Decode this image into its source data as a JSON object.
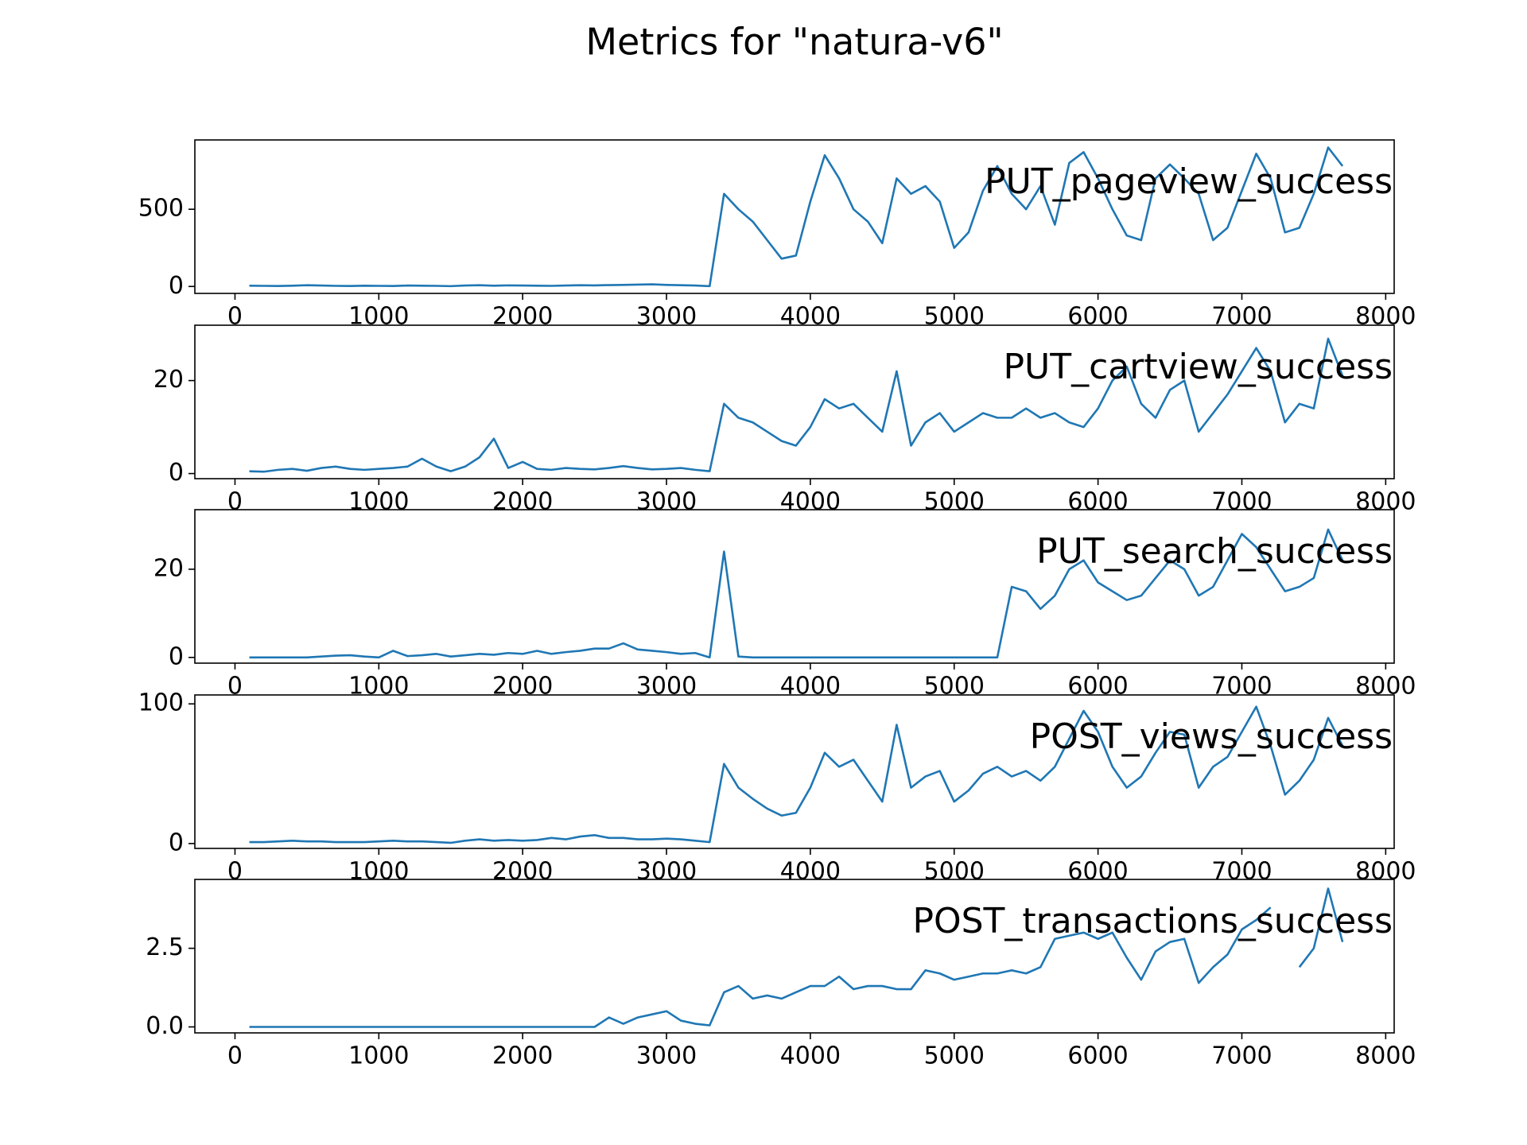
{
  "title": "Metrics for \"natura-v6\"",
  "chart_data": [
    {
      "type": "line",
      "title": "PUT_pageview_success",
      "color": "#1f77b4",
      "x": [
        100,
        200,
        300,
        400,
        500,
        600,
        700,
        800,
        900,
        1000,
        1100,
        1200,
        1300,
        1400,
        1500,
        1600,
        1700,
        1800,
        1900,
        2000,
        2100,
        2200,
        2300,
        2400,
        2500,
        2600,
        2700,
        2800,
        2900,
        3000,
        3100,
        3200,
        3300,
        3400,
        3500,
        3600,
        3700,
        3800,
        3900,
        4000,
        4100,
        4200,
        4300,
        4400,
        4500,
        4600,
        4700,
        4800,
        4900,
        5000,
        5100,
        5200,
        5300,
        5400,
        5500,
        5600,
        5700,
        5800,
        5900,
        6000,
        6100,
        6200,
        6300,
        6400,
        6500,
        6600,
        6700,
        6800,
        6900,
        7000,
        7100,
        7200,
        7300,
        7400,
        7500,
        7600,
        7700
      ],
      "values": [
        5,
        4,
        3,
        5,
        8,
        6,
        4,
        3,
        5,
        4,
        3,
        6,
        5,
        4,
        2,
        6,
        8,
        5,
        7,
        6,
        5,
        4,
        6,
        8,
        7,
        9,
        10,
        12,
        14,
        10,
        8,
        6,
        2,
        600,
        500,
        420,
        300,
        180,
        200,
        550,
        850,
        700,
        500,
        420,
        280,
        700,
        600,
        650,
        550,
        250,
        350,
        620,
        780,
        600,
        500,
        650,
        400,
        800,
        870,
        700,
        500,
        330,
        300,
        700,
        790,
        700,
        600,
        300,
        380,
        620,
        860,
        700,
        350,
        380,
        600,
        900,
        780
      ],
      "xlim": [
        -279,
        8059
      ],
      "ylim": [
        -45,
        949
      ],
      "xticks": [
        0,
        1000,
        2000,
        3000,
        4000,
        5000,
        6000,
        7000,
        8000
      ],
      "yticks": [
        0,
        500
      ]
    },
    {
      "type": "line",
      "title": "PUT_cartview_success",
      "color": "#1f77b4",
      "x": [
        100,
        200,
        300,
        400,
        500,
        600,
        700,
        800,
        900,
        1000,
        1100,
        1200,
        1300,
        1400,
        1500,
        1600,
        1700,
        1800,
        1900,
        2000,
        2100,
        2200,
        2300,
        2400,
        2500,
        2600,
        2700,
        2800,
        2900,
        3000,
        3100,
        3200,
        3300,
        3400,
        3500,
        3600,
        3700,
        3800,
        3900,
        4000,
        4100,
        4200,
        4300,
        4400,
        4500,
        4600,
        4700,
        4800,
        4900,
        5000,
        5100,
        5200,
        5300,
        5400,
        5500,
        5600,
        5700,
        5800,
        5900,
        6000,
        6100,
        6200,
        6300,
        6400,
        6500,
        6600,
        6700,
        6800,
        6900,
        7000,
        7100,
        7200,
        7300,
        7400,
        7500,
        7600,
        7700
      ],
      "values": [
        0.5,
        0.4,
        0.8,
        1,
        0.6,
        1.2,
        1.5,
        1,
        0.8,
        1,
        1.2,
        1.5,
        3.2,
        1.5,
        0.5,
        1.5,
        3.5,
        7.5,
        1.2,
        2.5,
        1,
        0.8,
        1.2,
        1,
        0.9,
        1.2,
        1.6,
        1.2,
        0.9,
        1,
        1.2,
        0.8,
        0.5,
        15,
        12,
        11,
        9,
        7,
        6,
        10,
        16,
        14,
        15,
        12,
        9,
        22,
        6,
        11,
        13,
        9,
        11,
        13,
        12,
        12,
        14,
        12,
        13,
        11,
        10,
        14,
        20,
        23,
        15,
        12,
        18,
        20,
        9,
        13,
        17,
        22,
        27,
        22,
        11,
        15,
        14,
        29,
        21
      ],
      "xlim": [
        -279,
        8059
      ],
      "ylim": [
        -1.1,
        31.9
      ],
      "xticks": [
        0,
        1000,
        2000,
        3000,
        4000,
        5000,
        6000,
        7000,
        8000
      ],
      "yticks": [
        0,
        20
      ]
    },
    {
      "type": "line",
      "title": "PUT_search_success",
      "color": "#1f77b4",
      "x": [
        100,
        200,
        300,
        400,
        500,
        600,
        700,
        800,
        900,
        1000,
        1100,
        1200,
        1300,
        1400,
        1500,
        1600,
        1700,
        1800,
        1900,
        2000,
        2100,
        2200,
        2300,
        2400,
        2500,
        2600,
        2700,
        2800,
        2900,
        3000,
        3100,
        3200,
        3300,
        3400,
        3500,
        3600,
        3700,
        3800,
        3900,
        4000,
        4100,
        4200,
        4300,
        4400,
        4500,
        4600,
        4700,
        4800,
        4900,
        5000,
        5100,
        5200,
        5300,
        5400,
        5500,
        5600,
        5700,
        5800,
        5900,
        6000,
        6100,
        6200,
        6300,
        6400,
        6500,
        6600,
        6700,
        6800,
        6900,
        7000,
        7100,
        7200,
        7300,
        7400,
        7500,
        7600,
        7700
      ],
      "values": [
        0,
        0,
        0,
        0,
        0,
        0.2,
        0.4,
        0.5,
        0.2,
        0,
        1.5,
        0.3,
        0.5,
        0.8,
        0.2,
        0.5,
        0.8,
        0.6,
        1,
        0.8,
        1.5,
        0.8,
        1.2,
        1.5,
        2,
        2,
        3.2,
        1.8,
        1.5,
        1.2,
        0.8,
        1,
        0,
        24,
        0.2,
        0,
        0,
        0,
        0,
        0,
        0,
        0,
        0,
        0,
        0,
        0,
        0,
        0,
        0,
        0,
        0,
        0,
        0,
        16,
        15,
        11,
        14,
        20,
        22,
        17,
        15,
        13,
        14,
        18,
        22,
        20,
        14,
        16,
        22,
        28,
        25,
        20,
        15,
        16,
        18,
        29,
        22
      ],
      "xlim": [
        -279,
        8059
      ],
      "ylim": [
        -1.3,
        33.5
      ],
      "xticks": [
        0,
        1000,
        2000,
        3000,
        4000,
        5000,
        6000,
        7000,
        8000
      ],
      "yticks": [
        0,
        20
      ]
    },
    {
      "type": "line",
      "title": "POST_views_success",
      "color": "#1f77b4",
      "x": [
        100,
        200,
        300,
        400,
        500,
        600,
        700,
        800,
        900,
        1000,
        1100,
        1200,
        1300,
        1400,
        1500,
        1600,
        1700,
        1800,
        1900,
        2000,
        2100,
        2200,
        2300,
        2400,
        2500,
        2600,
        2700,
        2800,
        2900,
        3000,
        3100,
        3200,
        3300,
        3400,
        3500,
        3600,
        3700,
        3800,
        3900,
        4000,
        4100,
        4200,
        4300,
        4400,
        4500,
        4600,
        4700,
        4800,
        4900,
        5000,
        5100,
        5200,
        5300,
        5400,
        5500,
        5600,
        5700,
        5800,
        5900,
        6000,
        6100,
        6200,
        6300,
        6400,
        6500,
        6600,
        6700,
        6800,
        6900,
        7000,
        7100,
        7200,
        7300,
        7400,
        7500,
        7600,
        7700
      ],
      "values": [
        1,
        1,
        1.5,
        2,
        1.5,
        1.5,
        1,
        1,
        1,
        1.5,
        2,
        1.5,
        1.5,
        1,
        0.5,
        2,
        3,
        2,
        2.5,
        2,
        2.5,
        4,
        3,
        5,
        6,
        4,
        4,
        3,
        3,
        3.5,
        3,
        2,
        1,
        57,
        40,
        32,
        25,
        20,
        22,
        40,
        65,
        55,
        60,
        45,
        30,
        85,
        40,
        48,
        52,
        30,
        38,
        50,
        55,
        48,
        52,
        45,
        55,
        75,
        95,
        80,
        55,
        40,
        48,
        65,
        80,
        78,
        40,
        55,
        62,
        80,
        98,
        70,
        35,
        45,
        60,
        90,
        70
      ],
      "xlim": [
        -279,
        8059
      ],
      "ylim": [
        -3.5,
        106.4
      ],
      "xticks": [
        0,
        1000,
        2000,
        3000,
        4000,
        5000,
        6000,
        7000,
        8000
      ],
      "yticks": [
        0,
        100
      ]
    },
    {
      "type": "line",
      "title": "POST_transactions_success",
      "color": "#1f77b4",
      "x": [
        100,
        200,
        300,
        400,
        500,
        600,
        700,
        800,
        900,
        1000,
        1100,
        1200,
        1300,
        1400,
        1500,
        1600,
        1700,
        1800,
        1900,
        2000,
        2100,
        2200,
        2300,
        2400,
        2500,
        2600,
        2700,
        2800,
        2900,
        3000,
        3100,
        3200,
        3300,
        3400,
        3500,
        3600,
        3700,
        3800,
        3900,
        4000,
        4100,
        4200,
        4300,
        4400,
        4500,
        4600,
        4700,
        4800,
        4900,
        5000,
        5100,
        5200,
        5300,
        5400,
        5500,
        5600,
        5700,
        5800,
        5900,
        6000,
        6100,
        6200,
        6300,
        6400,
        6500,
        6600,
        6700,
        6800,
        6900,
        7000,
        7100,
        7200,
        7300,
        7400,
        7500,
        7600,
        7700
      ],
      "values": [
        0,
        0,
        0,
        0,
        0,
        0,
        0,
        0,
        0,
        0,
        0,
        0,
        0,
        0,
        0,
        0,
        0,
        0,
        0,
        0,
        0,
        0,
        0,
        0,
        0,
        0.3,
        0.1,
        0.3,
        0.4,
        0.5,
        0.2,
        0.1,
        0.05,
        1.1,
        1.3,
        0.9,
        1,
        0.9,
        1.1,
        1.3,
        1.3,
        1.6,
        1.2,
        1.3,
        1.3,
        1.2,
        1.2,
        1.8,
        1.7,
        1.5,
        1.6,
        1.7,
        1.7,
        1.8,
        1.7,
        1.9,
        2.8,
        2.9,
        3,
        2.8,
        3,
        2.2,
        1.5,
        2.4,
        2.7,
        2.8,
        1.4,
        1.9,
        2.3,
        3.1,
        3.4,
        3.8,
        null,
        1.9,
        2.5,
        4.4,
        2.7
      ],
      "xlim": [
        -279,
        8059
      ],
      "ylim": [
        -0.19,
        4.69
      ],
      "xticks": [
        0,
        1000,
        2000,
        3000,
        4000,
        5000,
        6000,
        7000,
        8000
      ],
      "yticks": [
        {
          "value": 0,
          "label": "0.0"
        },
        2.5
      ]
    }
  ]
}
